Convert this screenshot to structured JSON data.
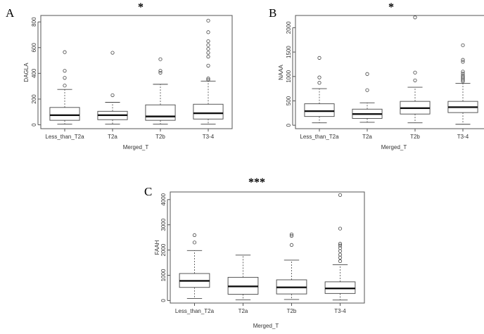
{
  "chart_data": [
    {
      "type": "boxplot",
      "panel_label": "A",
      "title": "*",
      "xlabel": "Merged_T",
      "ylabel": "DAGLA",
      "categories": [
        "Less_than_T2a",
        "T2a",
        "T2b",
        "T3-4"
      ],
      "yticks": [
        0,
        200,
        400,
        600,
        800
      ],
      "ylim": [
        -30,
        850
      ],
      "boxes": [
        {
          "whisker_low": 5,
          "q1": 35,
          "median": 75,
          "q3": 135,
          "whisker_high": 275,
          "outliers": [
            305,
            365,
            420,
            565
          ]
        },
        {
          "whisker_low": 5,
          "q1": 40,
          "median": 75,
          "q3": 105,
          "whisker_high": 175,
          "outliers": [
            230,
            560
          ]
        },
        {
          "whisker_low": 5,
          "q1": 35,
          "median": 65,
          "q3": 155,
          "whisker_high": 315,
          "outliers": [
            405,
            420,
            510
          ]
        },
        {
          "whisker_low": 5,
          "q1": 45,
          "median": 90,
          "q3": 160,
          "whisker_high": 340,
          "outliers": [
            350,
            360,
            460,
            530,
            560,
            590,
            620,
            650,
            720,
            810
          ]
        }
      ]
    },
    {
      "type": "boxplot",
      "panel_label": "B",
      "title": "*",
      "xlabel": "Merged_T",
      "ylabel": "NAAA",
      "categories": [
        "Less_than_T2a",
        "T2a",
        "T2b",
        "T3-4"
      ],
      "yticks": [
        0,
        500,
        1000,
        1500,
        2000
      ],
      "ylim": [
        -70,
        2250
      ],
      "boxes": [
        {
          "whisker_low": 50,
          "q1": 180,
          "median": 290,
          "q3": 440,
          "whisker_high": 750,
          "outliers": [
            870,
            980,
            1380
          ]
        },
        {
          "whisker_low": 60,
          "q1": 140,
          "median": 230,
          "q3": 330,
          "whisker_high": 460,
          "outliers": [
            720,
            1050
          ]
        },
        {
          "whisker_low": 50,
          "q1": 230,
          "median": 350,
          "q3": 490,
          "whisker_high": 780,
          "outliers": [
            920,
            1080,
            2210
          ]
        },
        {
          "whisker_low": 20,
          "q1": 260,
          "median": 370,
          "q3": 490,
          "whisker_high": 860,
          "outliers": [
            900,
            930,
            960,
            990,
            1020,
            1060,
            1100,
            1300,
            1340,
            1640
          ]
        }
      ]
    },
    {
      "type": "boxplot",
      "panel_label": "C",
      "title": "***",
      "xlabel": "Merged_T",
      "ylabel": "FAAH",
      "categories": [
        "Less_than_T2a",
        "T2a",
        "T2b",
        "T3-4"
      ],
      "yticks": [
        0,
        1000,
        2000,
        3000,
        4000
      ],
      "ylim": [
        -100,
        4300
      ],
      "boxes": [
        {
          "whisker_low": 80,
          "q1": 520,
          "median": 780,
          "q3": 1070,
          "whisker_high": 1980,
          "outliers": [
            2300,
            2590
          ]
        },
        {
          "whisker_low": 30,
          "q1": 250,
          "median": 560,
          "q3": 920,
          "whisker_high": 1800,
          "outliers": []
        },
        {
          "whisker_low": 40,
          "q1": 260,
          "median": 520,
          "q3": 820,
          "whisker_high": 1600,
          "outliers": [
            2200,
            2560,
            2620
          ]
        },
        {
          "whisker_low": 20,
          "q1": 280,
          "median": 480,
          "q3": 740,
          "whisker_high": 1420,
          "outliers": [
            1560,
            1700,
            1820,
            1960,
            2080,
            2180,
            2250,
            2850,
            4180
          ]
        }
      ]
    }
  ]
}
